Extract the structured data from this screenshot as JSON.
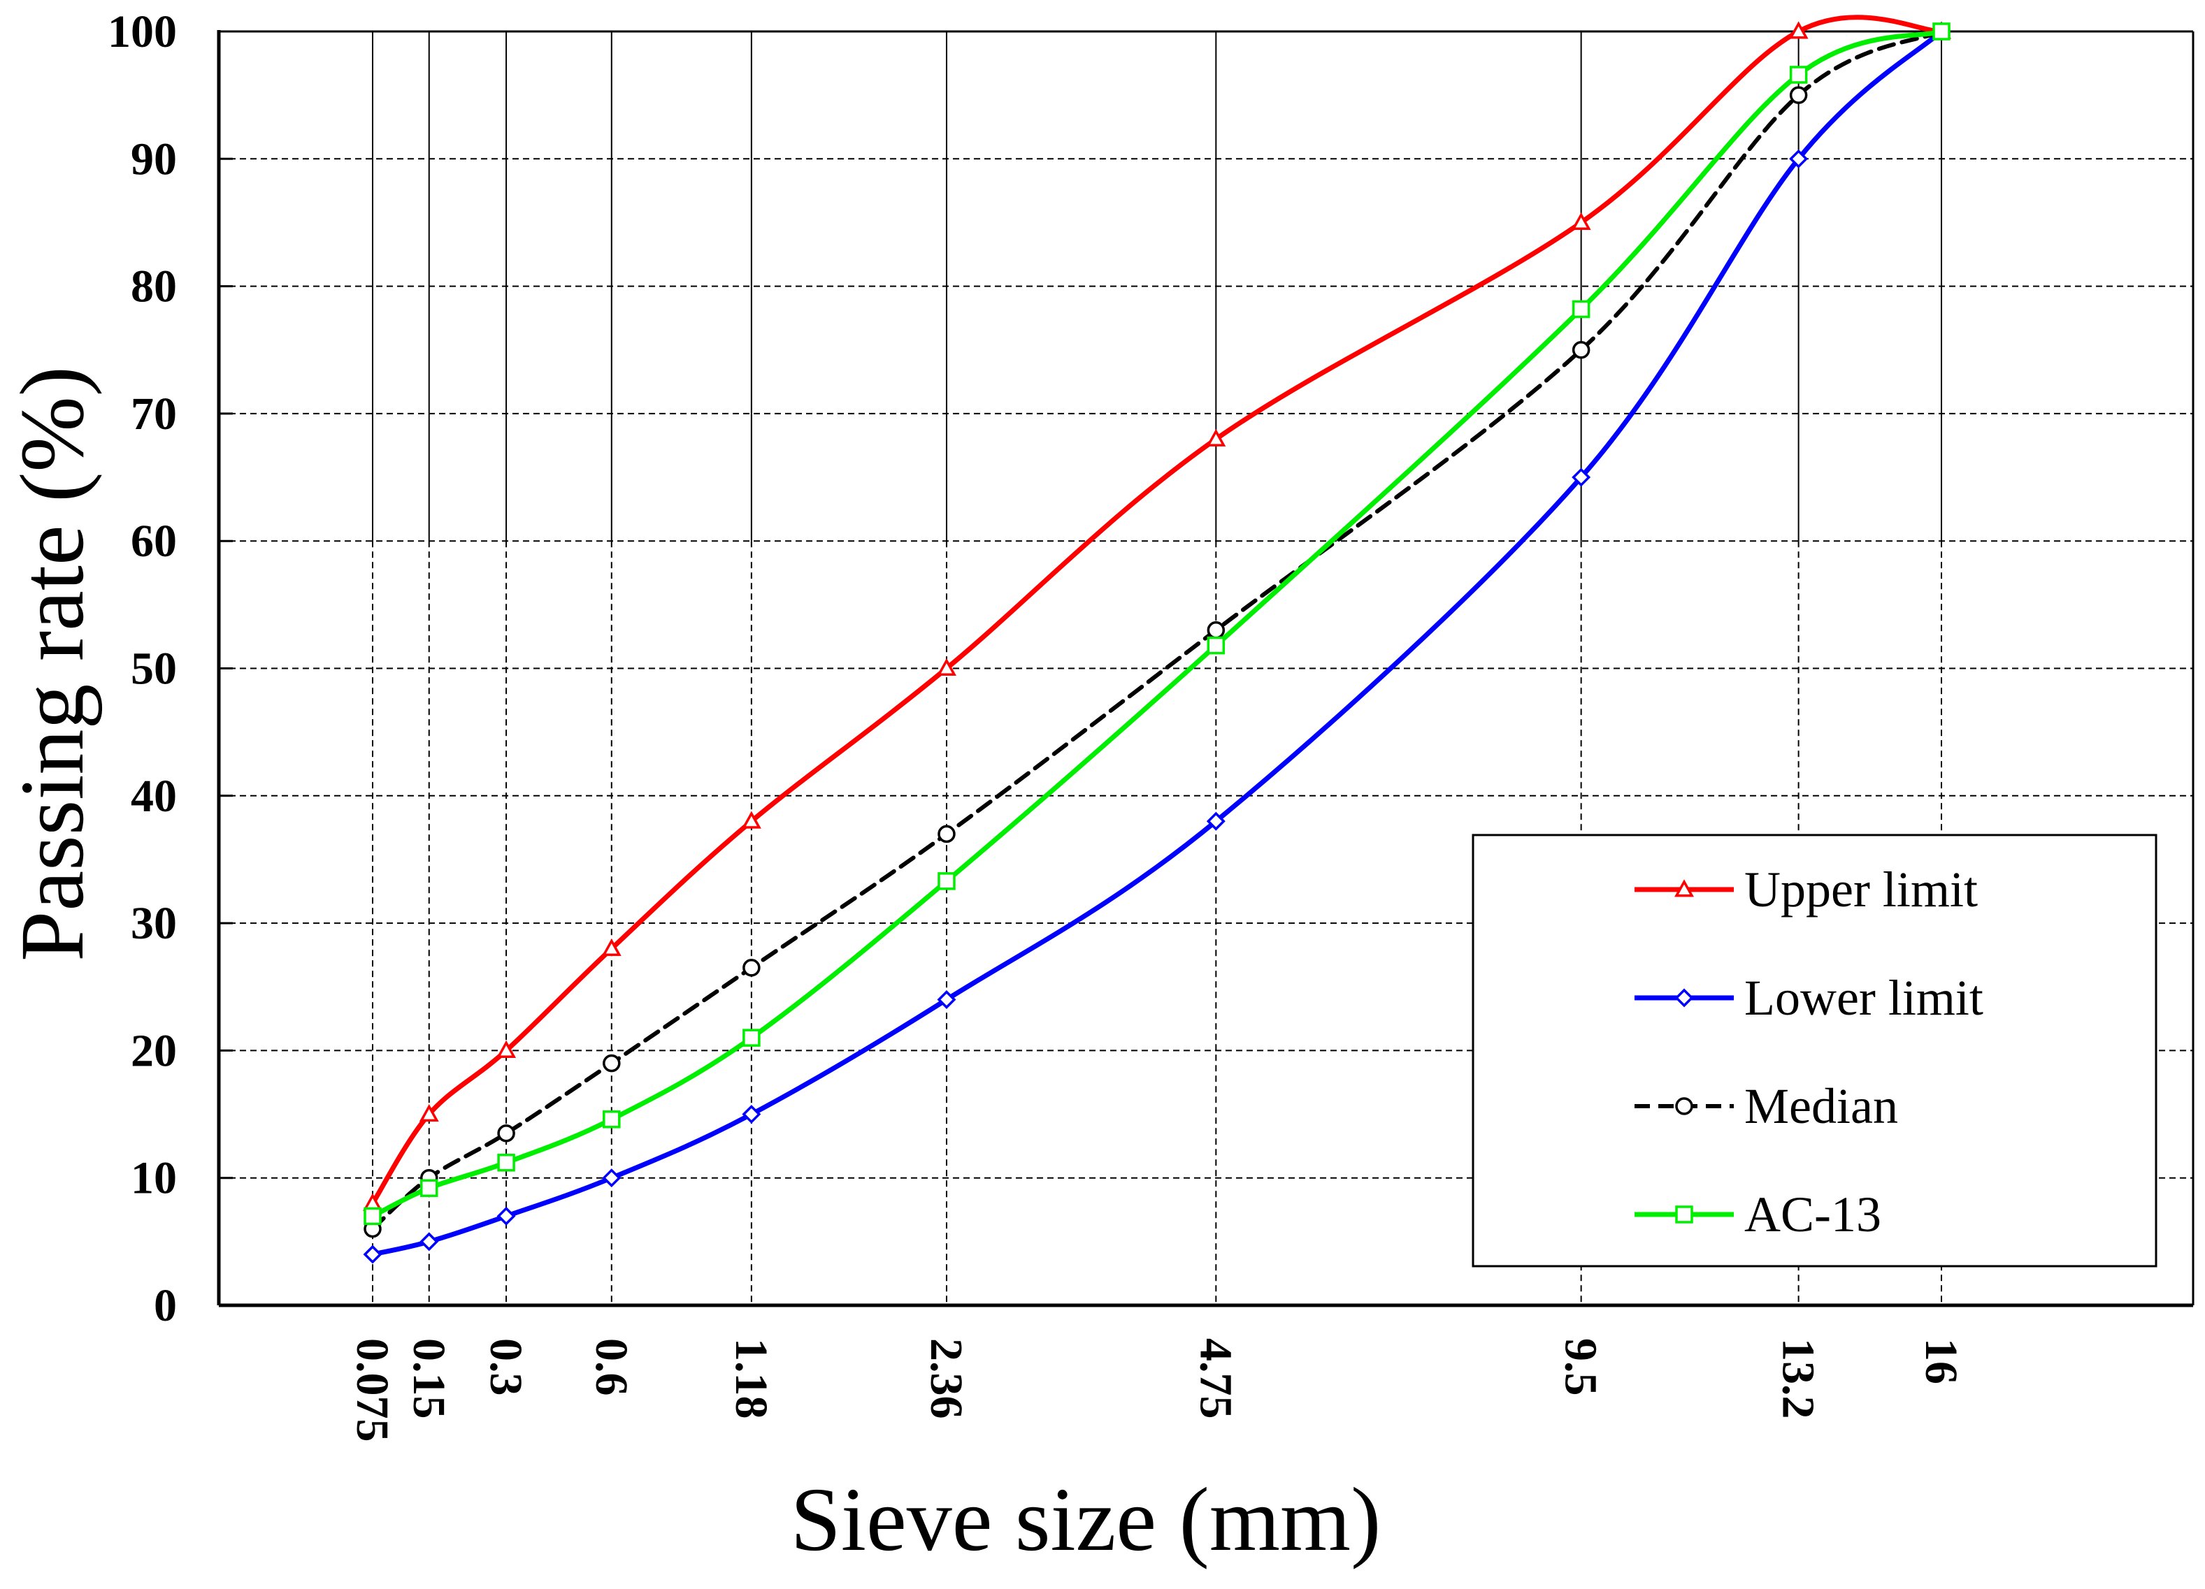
{
  "chart_data": {
    "type": "line",
    "title": "",
    "xlabel": "Sieve size (mm)",
    "ylabel": "Passing rate (%)",
    "x_scale": "power-0.45 (gradation chart)",
    "x": [
      0.075,
      0.15,
      0.3,
      0.6,
      1.18,
      2.36,
      4.75,
      9.5,
      13.2,
      16
    ],
    "x_tick_labels": [
      "0.075",
      "0.15",
      "0.3",
      "0.6",
      "1.18",
      "2.36",
      "4.75",
      "9.5",
      "13.2",
      "16"
    ],
    "ylim": [
      0,
      100
    ],
    "y_ticks": [
      0,
      10,
      20,
      30,
      40,
      50,
      60,
      70,
      80,
      90,
      100
    ],
    "grid": true,
    "legend_position": "bottom-right",
    "series": [
      {
        "name": "Upper limit",
        "color": "#ff0000",
        "marker": "triangle",
        "dashed": false,
        "values": [
          8,
          15,
          20,
          28,
          38,
          50,
          68,
          85,
          100,
          100
        ]
      },
      {
        "name": "Lower limit",
        "color": "#0000ff",
        "marker": "diamond",
        "dashed": false,
        "values": [
          4,
          5,
          7,
          10,
          15,
          24,
          38,
          65,
          90,
          100
        ]
      },
      {
        "name": "Median",
        "color": "#000000",
        "marker": "circle",
        "dashed": true,
        "values": [
          6,
          10,
          13.5,
          19,
          26.5,
          37,
          53,
          75,
          95,
          100
        ]
      },
      {
        "name": "AC-13",
        "color": "#00ee00",
        "marker": "square",
        "dashed": false,
        "values": [
          7,
          9.2,
          11.2,
          14.6,
          21,
          33.3,
          51.8,
          78.2,
          96.6,
          100
        ]
      }
    ]
  }
}
